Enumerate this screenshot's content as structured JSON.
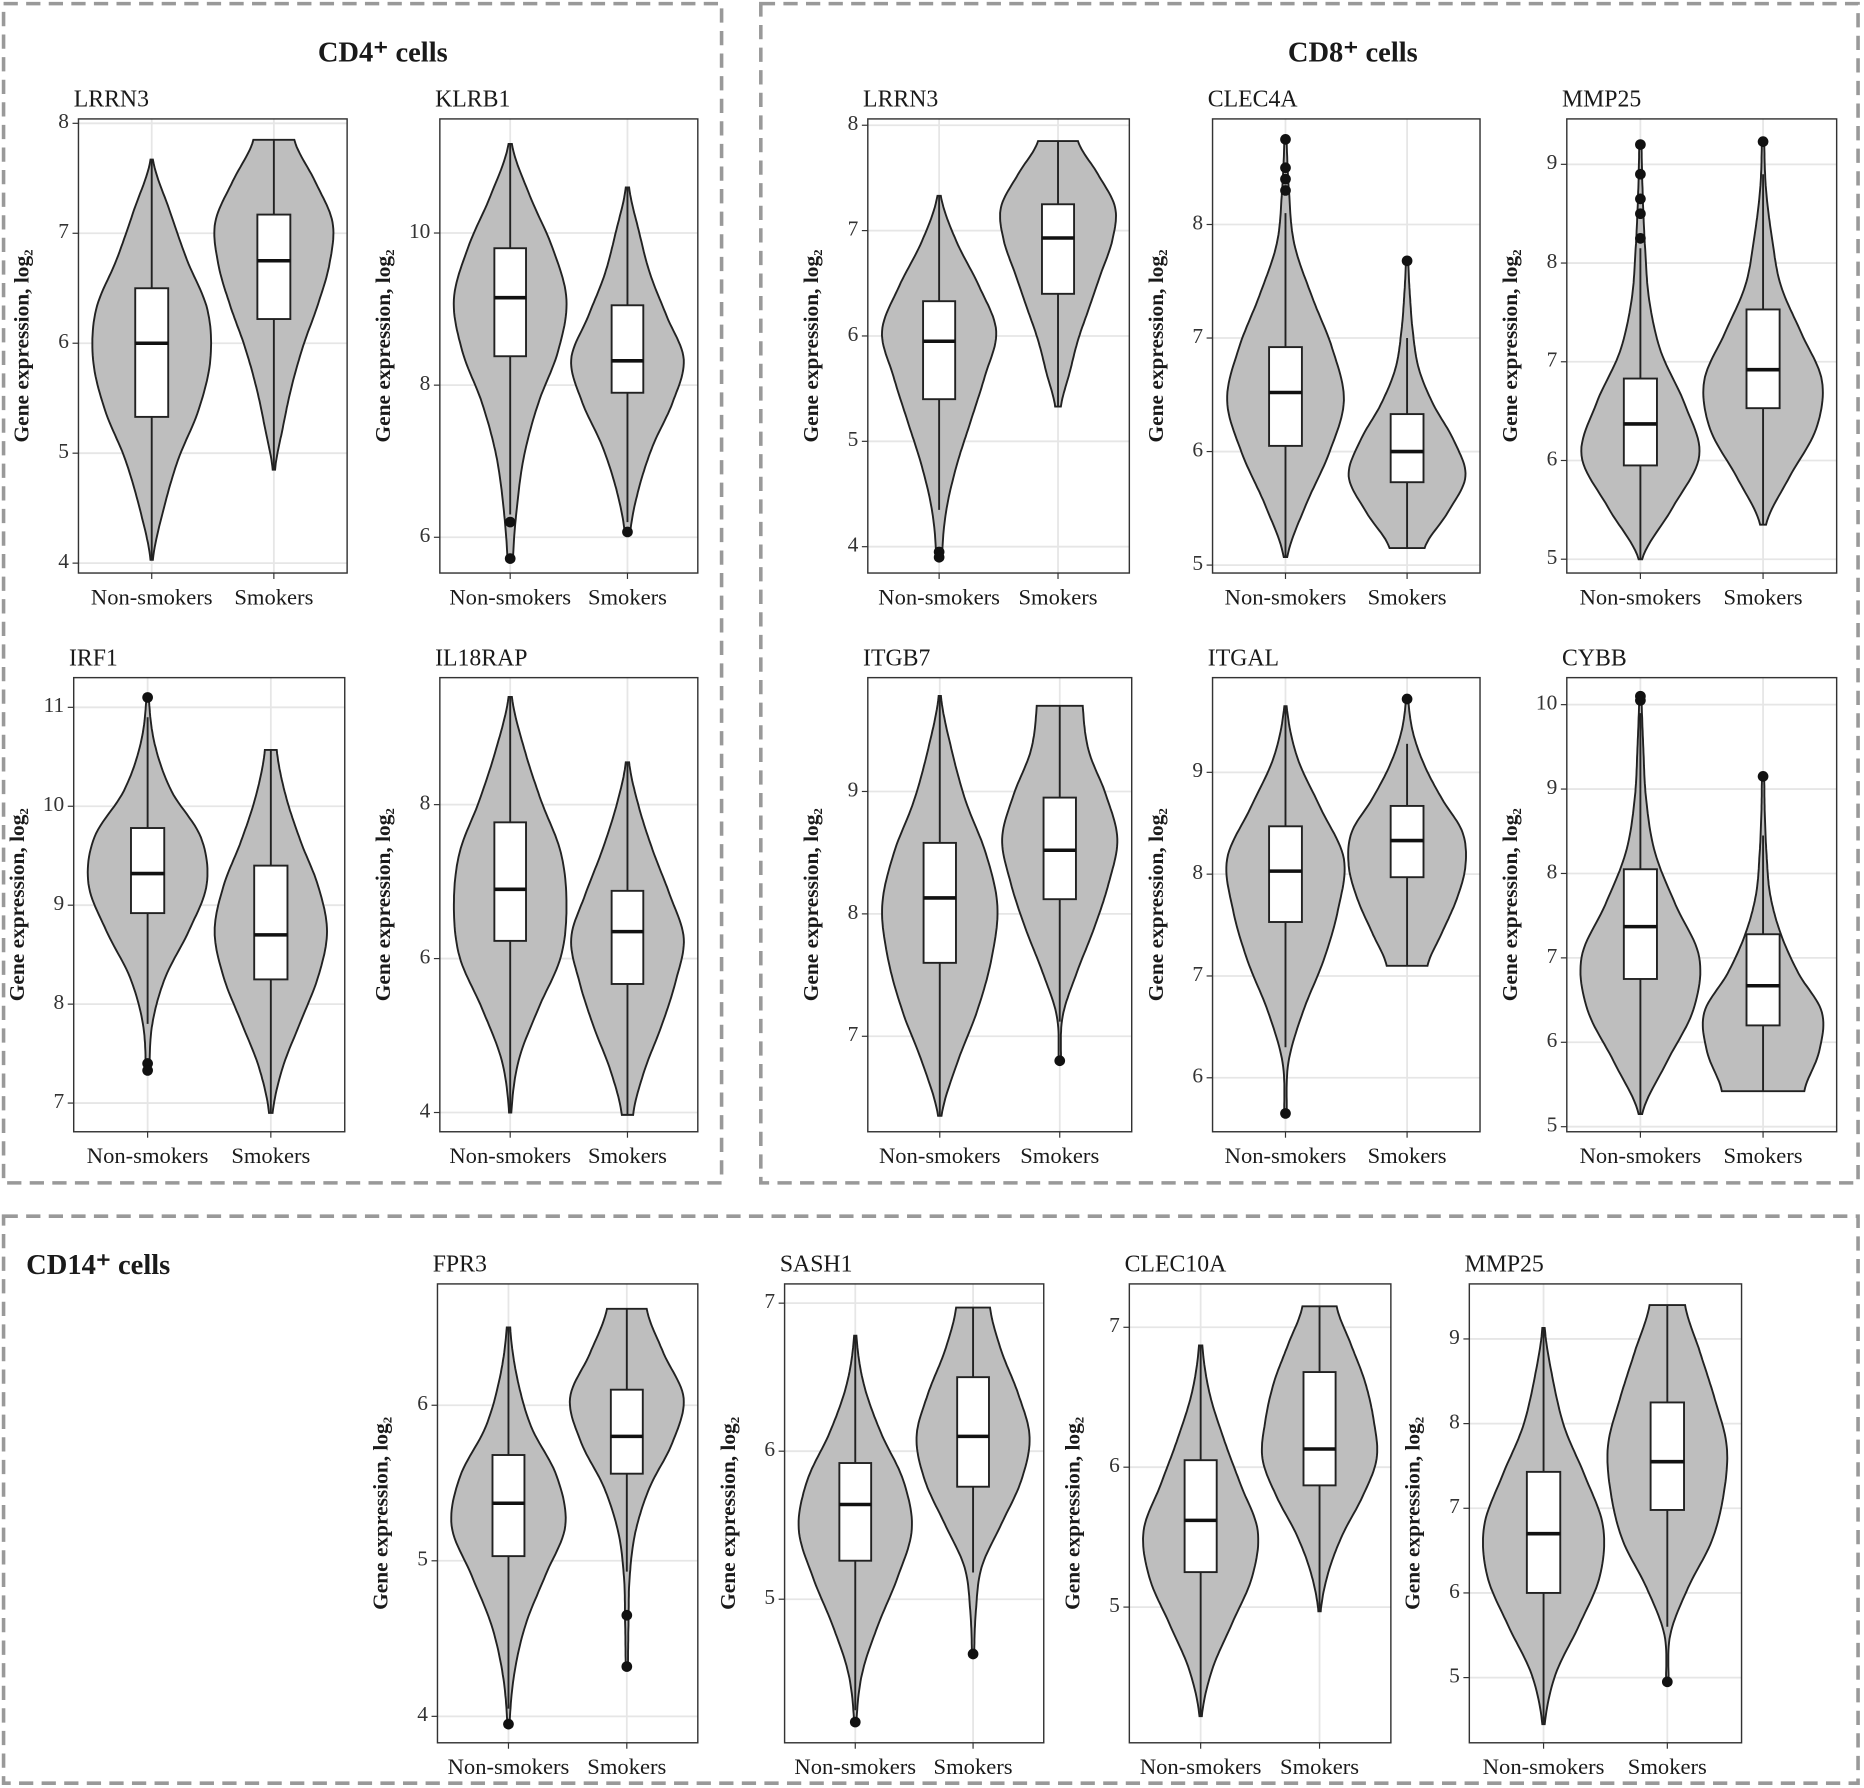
{
  "sections": [
    {
      "title": "CD4⁺ cells"
    },
    {
      "title": "CD8⁺ cells"
    },
    {
      "title": "CD14⁺ cells"
    }
  ],
  "chart_data": [
    {
      "type": "violin",
      "title": "LRRN3",
      "ylabel": "Gene expression, log₂",
      "categories": [
        "Non-smokers",
        "Smokers"
      ],
      "color": "#bebebe",
      "ylim": [
        3.91,
        8.04
      ],
      "yticks": [
        4,
        5,
        6,
        7,
        8
      ],
      "groups": [
        {
          "q1": 5.33,
          "median": 6.0,
          "q3": 6.5,
          "whisker": [
            4.03,
            7.67
          ],
          "outliers": [],
          "density": [
            0.02,
            0.2,
            0.45,
            0.8,
            1.0,
            0.95,
            0.6,
            0.3,
            0.02
          ]
        },
        {
          "q1": 6.22,
          "median": 6.75,
          "q3": 7.17,
          "whisker": [
            4.85,
            7.85
          ],
          "outliers": [],
          "density": [
            0.02,
            0.15,
            0.3,
            0.5,
            0.75,
            0.95,
            1.0,
            0.7,
            0.35
          ]
        }
      ]
    },
    {
      "type": "violin",
      "title": "KLRB1",
      "ylabel": "Gene expression, log₂",
      "categories": [
        "Non-smokers",
        "Smokers"
      ],
      "color": "#bebebe",
      "ylim": [
        5.53,
        11.5
      ],
      "yticks": [
        6,
        8,
        10
      ],
      "groups": [
        {
          "q1": 8.38,
          "median": 9.15,
          "q3": 9.8,
          "whisker": [
            6.3,
            11.17
          ],
          "outliers": [
            6.2,
            5.72
          ],
          "density": [
            0.05,
            0.12,
            0.25,
            0.5,
            0.85,
            1.0,
            0.75,
            0.35,
            0.03
          ]
        },
        {
          "q1": 7.9,
          "median": 8.32,
          "q3": 9.05,
          "whisker": [
            6.2,
            10.6
          ],
          "outliers": [
            6.07
          ],
          "density": [
            0.05,
            0.2,
            0.45,
            0.8,
            1.0,
            0.7,
            0.4,
            0.2,
            0.03
          ]
        }
      ]
    },
    {
      "type": "violin",
      "title": "LRRN3",
      "ylabel": "Gene expression, log₂",
      "categories": [
        "Non-smokers",
        "Smokers"
      ],
      "color": "#bebebe",
      "ylim": [
        3.75,
        8.06
      ],
      "yticks": [
        4,
        5,
        6,
        7,
        8
      ],
      "groups": [
        {
          "q1": 5.4,
          "median": 5.95,
          "q3": 6.33,
          "whisker": [
            4.35,
            7.33
          ],
          "outliers": [
            3.95,
            3.9
          ],
          "density": [
            0.05,
            0.12,
            0.3,
            0.55,
            0.8,
            1.0,
            0.7,
            0.3,
            0.03
          ]
        },
        {
          "q1": 6.4,
          "median": 6.93,
          "q3": 7.25,
          "whisker": [
            5.33,
            7.85
          ],
          "outliers": [],
          "density": [
            0.05,
            0.2,
            0.35,
            0.55,
            0.75,
            0.95,
            1.0,
            0.7,
            0.35
          ]
        }
      ]
    },
    {
      "type": "violin",
      "title": "CLEC4A",
      "ylabel": "Gene expression, log₂",
      "categories": [
        "Non-smokers",
        "Smokers"
      ],
      "color": "#bebebe",
      "ylim": [
        4.93,
        8.93
      ],
      "yticks": [
        5,
        6,
        7,
        8
      ],
      "groups": [
        {
          "q1": 6.05,
          "median": 6.52,
          "q3": 6.92,
          "whisker": [
            5.07,
            8.1
          ],
          "outliers": [
            8.3,
            8.4,
            8.5,
            8.75
          ],
          "density": [
            0.03,
            0.35,
            0.75,
            1.0,
            0.8,
            0.45,
            0.15,
            0.06,
            0.02
          ]
        },
        {
          "q1": 5.73,
          "median": 6.0,
          "q3": 6.33,
          "whisker": [
            5.15,
            7.0
          ],
          "outliers": [
            7.68
          ],
          "density": [
            0.3,
            0.7,
            1.0,
            0.8,
            0.45,
            0.2,
            0.1,
            0.05,
            0.02
          ]
        }
      ]
    },
    {
      "type": "violin",
      "title": "MMP25",
      "ylabel": "Gene expression, log₂",
      "categories": [
        "Non-smokers",
        "Smokers"
      ],
      "color": "#bebebe",
      "ylim": [
        4.86,
        9.46
      ],
      "yticks": [
        5,
        6,
        7,
        8,
        9
      ],
      "groups": [
        {
          "q1": 5.95,
          "median": 6.37,
          "q3": 6.83,
          "whisker": [
            5.0,
            8.15
          ],
          "outliers": [
            8.25,
            8.5,
            8.65,
            8.9,
            9.2
          ],
          "density": [
            0.03,
            0.55,
            1.0,
            0.75,
            0.35,
            0.15,
            0.08,
            0.04,
            0.02
          ]
        },
        {
          "q1": 6.53,
          "median": 6.92,
          "q3": 7.53,
          "whisker": [
            5.35,
            8.9
          ],
          "outliers": [
            9.23
          ],
          "density": [
            0.05,
            0.45,
            0.9,
            1.0,
            0.65,
            0.3,
            0.15,
            0.05,
            0.02
          ]
        }
      ]
    },
    {
      "type": "violin",
      "title": "IRF1",
      "ylabel": "Gene expression, log₂",
      "categories": [
        "Non-smokers",
        "Smokers"
      ],
      "color": "#bebebe",
      "ylim": [
        6.71,
        11.3
      ],
      "yticks": [
        7,
        8,
        9,
        10,
        11
      ],
      "groups": [
        {
          "q1": 8.92,
          "median": 9.32,
          "q3": 9.78,
          "whisker": [
            7.8,
            10.9
          ],
          "outliers": [
            7.4,
            7.33,
            11.1
          ],
          "density": [
            0.03,
            0.08,
            0.3,
            0.7,
            1.0,
            0.9,
            0.4,
            0.12,
            0.02
          ]
        },
        {
          "q1": 8.25,
          "median": 8.7,
          "q3": 9.4,
          "whisker": [
            6.9,
            10.57
          ],
          "outliers": [],
          "density": [
            0.03,
            0.2,
            0.5,
            0.8,
            0.95,
            0.8,
            0.5,
            0.25,
            0.1
          ]
        }
      ]
    },
    {
      "type": "violin",
      "title": "IL18RAP",
      "ylabel": "Gene expression, log₂",
      "categories": [
        "Non-smokers",
        "Smokers"
      ],
      "color": "#bebebe",
      "ylim": [
        3.75,
        9.65
      ],
      "yticks": [
        4,
        6,
        8
      ],
      "groups": [
        {
          "q1": 6.23,
          "median": 6.9,
          "q3": 7.77,
          "whisker": [
            4.0,
            9.4
          ],
          "outliers": [],
          "density": [
            0.02,
            0.15,
            0.5,
            0.9,
            1.0,
            0.9,
            0.55,
            0.25,
            0.03
          ]
        },
        {
          "q1": 5.67,
          "median": 6.35,
          "q3": 6.88,
          "whisker": [
            3.97,
            8.55
          ],
          "outliers": [],
          "density": [
            0.1,
            0.3,
            0.6,
            0.85,
            1.0,
            0.75,
            0.45,
            0.2,
            0.03
          ]
        }
      ]
    },
    {
      "type": "violin",
      "title": "ITGB7",
      "ylabel": "Gene expression, log₂",
      "categories": [
        "Non-smokers",
        "Smokers"
      ],
      "color": "#bebebe",
      "ylim": [
        6.22,
        9.93
      ],
      "yticks": [
        7,
        8,
        9
      ],
      "groups": [
        {
          "q1": 7.6,
          "median": 8.13,
          "q3": 8.58,
          "whisker": [
            6.35,
            9.78
          ],
          "outliers": [],
          "density": [
            0.03,
            0.3,
            0.65,
            0.9,
            1.0,
            0.8,
            0.45,
            0.2,
            0.02
          ]
        },
        {
          "q1": 8.12,
          "median": 8.52,
          "q3": 8.95,
          "whisker": [
            7.12,
            9.7
          ],
          "outliers": [
            6.8
          ],
          "density": [
            0.02,
            0.05,
            0.3,
            0.6,
            0.85,
            1.0,
            0.8,
            0.5,
            0.4
          ]
        }
      ]
    },
    {
      "type": "violin",
      "title": "ITGAL",
      "ylabel": "Gene expression, log₂",
      "categories": [
        "Non-smokers",
        "Smokers"
      ],
      "color": "#bebebe",
      "ylim": [
        5.47,
        9.93
      ],
      "yticks": [
        6,
        7,
        8,
        9
      ],
      "groups": [
        {
          "q1": 7.53,
          "median": 8.03,
          "q3": 8.47,
          "whisker": [
            6.3,
            9.65
          ],
          "outliers": [
            5.65
          ],
          "density": [
            0.02,
            0.05,
            0.3,
            0.65,
            0.9,
            1.0,
            0.6,
            0.2,
            0.02
          ]
        },
        {
          "q1": 7.97,
          "median": 8.33,
          "q3": 8.67,
          "whisker": [
            7.1,
            9.28
          ],
          "outliers": [
            9.72
          ],
          "density": [
            0.35,
            0.6,
            0.85,
            1.0,
            0.95,
            0.6,
            0.3,
            0.1,
            0.02
          ]
        }
      ]
    },
    {
      "type": "violin",
      "title": "CYBB",
      "ylabel": "Gene expression, log₂",
      "categories": [
        "Non-smokers",
        "Smokers"
      ],
      "color": "#bebebe",
      "ylim": [
        4.94,
        10.32
      ],
      "yticks": [
        5,
        6,
        7,
        8,
        9,
        10
      ],
      "groups": [
        {
          "q1": 6.75,
          "median": 7.37,
          "q3": 8.05,
          "whisker": [
            5.15,
            9.9
          ],
          "outliers": [
            10.05,
            10.1
          ],
          "density": [
            0.03,
            0.45,
            0.9,
            1.0,
            0.6,
            0.25,
            0.1,
            0.05,
            0.02
          ]
        },
        {
          "q1": 6.2,
          "median": 6.67,
          "q3": 7.28,
          "whisker": [
            5.42,
            8.45
          ],
          "outliers": [
            9.15
          ],
          "density": [
            0.7,
            0.95,
            1.0,
            0.6,
            0.3,
            0.12,
            0.06,
            0.03,
            0.02
          ]
        }
      ]
    },
    {
      "type": "violin",
      "title": "FPR3",
      "ylabel": "Gene expression, log₂",
      "categories": [
        "Non-smokers",
        "Smokers"
      ],
      "color": "#bebebe",
      "ylim": [
        3.83,
        6.78
      ],
      "yticks": [
        4,
        5,
        6
      ],
      "groups": [
        {
          "q1": 5.03,
          "median": 5.37,
          "q3": 5.68,
          "whisker": [
            4.05,
            6.5
          ],
          "outliers": [
            3.95
          ],
          "density": [
            0.02,
            0.1,
            0.3,
            0.65,
            1.0,
            0.85,
            0.4,
            0.15,
            0.03
          ]
        },
        {
          "q1": 5.56,
          "median": 5.8,
          "q3": 6.1,
          "whisker": [
            4.93,
            6.62
          ],
          "outliers": [
            4.65,
            4.32
          ],
          "density": [
            0.02,
            0.03,
            0.05,
            0.15,
            0.4,
            0.8,
            1.0,
            0.65,
            0.35
          ]
        }
      ]
    },
    {
      "type": "violin",
      "title": "SASH1",
      "ylabel": "Gene expression, log₂",
      "categories": [
        "Non-smokers",
        "Smokers"
      ],
      "color": "#bebebe",
      "ylim": [
        4.03,
        7.13
      ],
      "yticks": [
        5,
        6,
        7
      ],
      "groups": [
        {
          "q1": 5.26,
          "median": 5.64,
          "q3": 5.92,
          "whisker": [
            4.25,
            6.78
          ],
          "outliers": [
            4.17
          ],
          "density": [
            0.02,
            0.12,
            0.4,
            0.75,
            1.0,
            0.85,
            0.45,
            0.15,
            0.02
          ]
        },
        {
          "q1": 5.76,
          "median": 6.1,
          "q3": 6.5,
          "whisker": [
            5.18,
            6.97
          ],
          "outliers": [
            4.63
          ],
          "density": [
            0.02,
            0.05,
            0.15,
            0.5,
            0.85,
            1.0,
            0.8,
            0.5,
            0.3
          ]
        }
      ]
    },
    {
      "type": "violin",
      "title": "CLEC10A",
      "ylabel": "Gene expression, log₂",
      "categories": [
        "Non-smokers",
        "Smokers"
      ],
      "color": "#bebebe",
      "ylim": [
        4.03,
        7.31
      ],
      "yticks": [
        5,
        6,
        7
      ],
      "groups": [
        {
          "q1": 5.25,
          "median": 5.62,
          "q3": 6.05,
          "whisker": [
            4.22,
            6.87
          ],
          "outliers": [],
          "density": [
            0.02,
            0.2,
            0.55,
            0.9,
            1.0,
            0.7,
            0.4,
            0.15,
            0.03
          ]
        },
        {
          "q1": 5.87,
          "median": 6.13,
          "q3": 6.68,
          "whisker": [
            4.97,
            7.15
          ],
          "outliers": [],
          "density": [
            0.02,
            0.15,
            0.4,
            0.75,
            1.0,
            0.95,
            0.8,
            0.55,
            0.3
          ]
        }
      ]
    },
    {
      "type": "violin",
      "title": "MMP25",
      "ylabel": "Gene expression, log₂",
      "categories": [
        "Non-smokers",
        "Smokers"
      ],
      "color": "#bebebe",
      "ylim": [
        4.23,
        9.65
      ],
      "yticks": [
        5,
        6,
        7,
        8,
        9
      ],
      "groups": [
        {
          "q1": 6.0,
          "median": 6.7,
          "q3": 7.43,
          "whisker": [
            4.45,
            9.13
          ],
          "outliers": [],
          "density": [
            0.02,
            0.2,
            0.6,
            0.95,
            1.0,
            0.7,
            0.35,
            0.15,
            0.02
          ]
        },
        {
          "q1": 6.98,
          "median": 7.55,
          "q3": 8.25,
          "whisker": [
            5.6,
            9.4
          ],
          "outliers": [
            4.95
          ],
          "density": [
            0.02,
            0.05,
            0.35,
            0.75,
            0.95,
            1.0,
            0.8,
            0.55,
            0.3
          ]
        }
      ]
    }
  ]
}
